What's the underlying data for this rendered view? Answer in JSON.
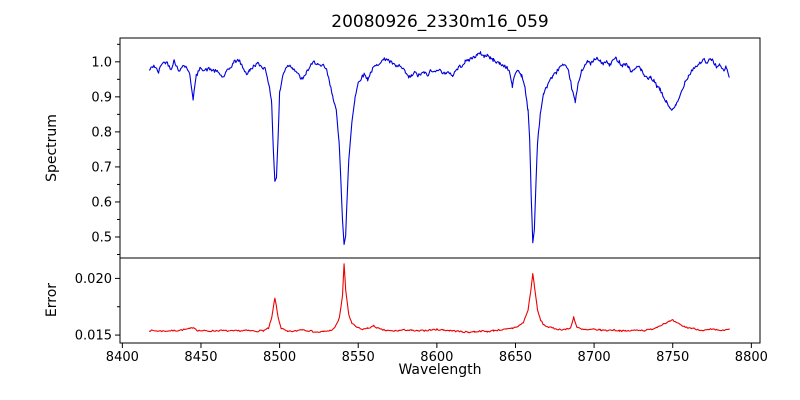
{
  "title": "20080926_2330m16_059",
  "axes": {
    "xlabel": "Wavelength",
    "top_ylabel": "Spectrum",
    "bottom_ylabel": "Error",
    "x_tick_values": [
      8400,
      8450,
      8500,
      8550,
      8600,
      8650,
      8700,
      8750,
      8800
    ],
    "x_tick_labels": [
      "8400",
      "8450",
      "8500",
      "8550",
      "8600",
      "8650",
      "8700",
      "8750",
      "8800"
    ],
    "top_y_tick_values": [
      0.5,
      0.6,
      0.7,
      0.8,
      0.9,
      1.0
    ],
    "top_y_tick_labels": [
      "0.5",
      "0.6",
      "0.7",
      "0.8",
      "0.9",
      "1.0"
    ],
    "top_y_minor_ticks": [
      0.45,
      0.55,
      0.65,
      0.75,
      0.85,
      0.95,
      1.05
    ],
    "bottom_y_tick_values": [
      0.015,
      0.02
    ],
    "bottom_y_tick_labels": [
      "0.015",
      "0.020"
    ],
    "bottom_y_minor_ticks": [
      0.0175
    ]
  },
  "chart_data": [
    {
      "type": "line",
      "name": "spectrum",
      "panel": "top",
      "color": "#0000dd",
      "ylabel": "Spectrum",
      "x_range": [
        8398.5,
        8805.5
      ],
      "y_range": [
        0.44,
        1.068
      ],
      "noise_amplitude": 0.005,
      "step": 0.6,
      "seed": 42,
      "points": [
        [
          8417,
          0.975
        ],
        [
          8420,
          0.99
        ],
        [
          8423,
          0.97
        ],
        [
          8425,
          0.995
        ],
        [
          8428,
          1.0
        ],
        [
          8431,
          0.98
        ],
        [
          8433,
          1.005
        ],
        [
          8436,
          0.97
        ],
        [
          8438,
          0.99
        ],
        [
          8441,
          0.985
        ],
        [
          8443,
          0.96
        ],
        [
          8445,
          0.895
        ],
        [
          8447,
          0.96
        ],
        [
          8450,
          0.985
        ],
        [
          8452,
          0.975
        ],
        [
          8455,
          0.98
        ],
        [
          8458,
          0.975
        ],
        [
          8461,
          0.97
        ],
        [
          8464,
          0.955
        ],
        [
          8466,
          0.97
        ],
        [
          8469,
          0.985
        ],
        [
          8471,
          1.0
        ],
        [
          8474,
          1.005
        ],
        [
          8476,
          0.99
        ],
        [
          8479,
          0.965
        ],
        [
          8481,
          0.975
        ],
        [
          8484,
          0.99
        ],
        [
          8486,
          0.995
        ],
        [
          8489,
          0.985
        ],
        [
          8491,
          0.98
        ],
        [
          8493,
          0.94
        ],
        [
          8495,
          0.88
        ],
        [
          8496,
          0.75
        ],
        [
          8497,
          0.66
        ],
        [
          8498,
          0.67
        ],
        [
          8499,
          0.78
        ],
        [
          8500,
          0.91
        ],
        [
          8502,
          0.96
        ],
        [
          8504,
          0.985
        ],
        [
          8506,
          0.99
        ],
        [
          8508,
          0.985
        ],
        [
          8511,
          0.97
        ],
        [
          8513,
          0.955
        ],
        [
          8515,
          0.95
        ],
        [
          8517,
          0.97
        ],
        [
          8520,
          0.99
        ],
        [
          8522,
          1.0
        ],
        [
          8524,
          0.995
        ],
        [
          8526,
          0.985
        ],
        [
          8528,
          0.99
        ],
        [
          8530,
          0.975
        ],
        [
          8532,
          0.935
        ],
        [
          8534,
          0.9
        ],
        [
          8536,
          0.86
        ],
        [
          8538,
          0.76
        ],
        [
          8539,
          0.66
        ],
        [
          8540,
          0.55
        ],
        [
          8541,
          0.478
        ],
        [
          8542,
          0.5
        ],
        [
          8543,
          0.62
        ],
        [
          8544,
          0.72
        ],
        [
          8546,
          0.83
        ],
        [
          8548,
          0.9
        ],
        [
          8550,
          0.94
        ],
        [
          8552,
          0.955
        ],
        [
          8554,
          0.965
        ],
        [
          8556,
          0.95
        ],
        [
          8558,
          0.97
        ],
        [
          8560,
          0.985
        ],
        [
          8562,
          0.99
        ],
        [
          8564,
          1.0
        ],
        [
          8566,
          1.005
        ],
        [
          8568,
          1.01
        ],
        [
          8570,
          1.0
        ],
        [
          8572,
          0.995
        ],
        [
          8574,
          0.985
        ],
        [
          8576,
          0.99
        ],
        [
          8578,
          0.98
        ],
        [
          8580,
          0.97
        ],
        [
          8582,
          0.955
        ],
        [
          8584,
          0.96
        ],
        [
          8586,
          0.97
        ],
        [
          8588,
          0.96
        ],
        [
          8590,
          0.965
        ],
        [
          8592,
          0.97
        ],
        [
          8594,
          0.96
        ],
        [
          8596,
          0.975
        ],
        [
          8598,
          0.97
        ],
        [
          8600,
          0.98
        ],
        [
          8602,
          0.975
        ],
        [
          8604,
          0.97
        ],
        [
          8606,
          0.965
        ],
        [
          8608,
          0.97
        ],
        [
          8610,
          0.96
        ],
        [
          8612,
          0.975
        ],
        [
          8614,
          0.985
        ],
        [
          8616,
          0.99
        ],
        [
          8618,
          1.0
        ],
        [
          8620,
          1.005
        ],
        [
          8622,
          1.01
        ],
        [
          8624,
          1.015
        ],
        [
          8626,
          1.02
        ],
        [
          8628,
          1.025
        ],
        [
          8630,
          1.015
        ],
        [
          8632,
          1.02
        ],
        [
          8634,
          1.01
        ],
        [
          8636,
          1.005
        ],
        [
          8638,
          1.0
        ],
        [
          8640,
          0.995
        ],
        [
          8642,
          0.99
        ],
        [
          8644,
          0.985
        ],
        [
          8646,
          0.975
        ],
        [
          8648,
          0.93
        ],
        [
          8650,
          0.97
        ],
        [
          8652,
          0.975
        ],
        [
          8654,
          0.96
        ],
        [
          8656,
          0.93
        ],
        [
          8658,
          0.86
        ],
        [
          8659,
          0.78
        ],
        [
          8660,
          0.62
        ],
        [
          8661,
          0.483
        ],
        [
          8662,
          0.52
        ],
        [
          8663,
          0.65
        ],
        [
          8664,
          0.77
        ],
        [
          8666,
          0.86
        ],
        [
          8668,
          0.91
        ],
        [
          8670,
          0.93
        ],
        [
          8672,
          0.95
        ],
        [
          8674,
          0.96
        ],
        [
          8676,
          0.97
        ],
        [
          8678,
          0.985
        ],
        [
          8680,
          0.99
        ],
        [
          8682,
          0.985
        ],
        [
          8684,
          0.97
        ],
        [
          8686,
          0.92
        ],
        [
          8688,
          0.885
        ],
        [
          8690,
          0.94
        ],
        [
          8692,
          0.975
        ],
        [
          8694,
          0.99
        ],
        [
          8696,
          1.0
        ],
        [
          8698,
          0.995
        ],
        [
          8700,
          1.005
        ],
        [
          8702,
          1.01
        ],
        [
          8704,
          1.0
        ],
        [
          8706,
          0.995
        ],
        [
          8708,
          1.0
        ],
        [
          8710,
          0.99
        ],
        [
          8712,
          1.005
        ],
        [
          8714,
          1.01
        ],
        [
          8716,
          1.0
        ],
        [
          8718,
          0.99
        ],
        [
          8720,
          0.995
        ],
        [
          8722,
          0.985
        ],
        [
          8724,
          0.97
        ],
        [
          8726,
          0.98
        ],
        [
          8728,
          0.99
        ],
        [
          8730,
          0.975
        ],
        [
          8732,
          0.96
        ],
        [
          8734,
          0.95
        ],
        [
          8736,
          0.955
        ],
        [
          8738,
          0.945
        ],
        [
          8740,
          0.93
        ],
        [
          8742,
          0.92
        ],
        [
          8744,
          0.9
        ],
        [
          8746,
          0.885
        ],
        [
          8748,
          0.87
        ],
        [
          8750,
          0.862
        ],
        [
          8752,
          0.875
        ],
        [
          8754,
          0.895
        ],
        [
          8756,
          0.92
        ],
        [
          8758,
          0.945
        ],
        [
          8760,
          0.96
        ],
        [
          8762,
          0.975
        ],
        [
          8764,
          0.985
        ],
        [
          8766,
          0.99
        ],
        [
          8768,
          1.0
        ],
        [
          8770,
          1.005
        ],
        [
          8772,
          0.995
        ],
        [
          8774,
          1.01
        ],
        [
          8776,
          1.0
        ],
        [
          8778,
          0.985
        ],
        [
          8780,
          0.99
        ],
        [
          8782,
          0.975
        ],
        [
          8784,
          0.985
        ],
        [
          8786,
          0.955
        ]
      ]
    },
    {
      "type": "line",
      "name": "error",
      "panel": "bottom",
      "color": "#ee0000",
      "ylabel": "Error",
      "x_range": [
        8398.5,
        8805.5
      ],
      "y_range": [
        0.0143,
        0.0218
      ],
      "noise_amplitude": 7e-05,
      "step": 0.8,
      "seed": 7,
      "points": [
        [
          8417,
          0.0154
        ],
        [
          8425,
          0.01535
        ],
        [
          8435,
          0.0154
        ],
        [
          8443,
          0.01555
        ],
        [
          8445,
          0.0157
        ],
        [
          8448,
          0.0154
        ],
        [
          8455,
          0.01535
        ],
        [
          8462,
          0.0154
        ],
        [
          8470,
          0.01535
        ],
        [
          8478,
          0.0154
        ],
        [
          8485,
          0.01535
        ],
        [
          8490,
          0.0154
        ],
        [
          8493,
          0.0156
        ],
        [
          8495,
          0.0165
        ],
        [
          8497,
          0.0183
        ],
        [
          8499,
          0.0166
        ],
        [
          8501,
          0.0156
        ],
        [
          8505,
          0.0153
        ],
        [
          8510,
          0.01535
        ],
        [
          8514,
          0.0155
        ],
        [
          8518,
          0.0154
        ],
        [
          8524,
          0.01525
        ],
        [
          8528,
          0.0153
        ],
        [
          8532,
          0.0154
        ],
        [
          8535,
          0.0156
        ],
        [
          8538,
          0.0165
        ],
        [
          8540,
          0.0185
        ],
        [
          8541,
          0.0213
        ],
        [
          8542,
          0.019
        ],
        [
          8544,
          0.0168
        ],
        [
          8546,
          0.016
        ],
        [
          8549,
          0.0157
        ],
        [
          8552,
          0.0155
        ],
        [
          8556,
          0.0156
        ],
        [
          8560,
          0.0158
        ],
        [
          8564,
          0.0155
        ],
        [
          8568,
          0.0154
        ],
        [
          8572,
          0.01535
        ],
        [
          8576,
          0.0154
        ],
        [
          8580,
          0.01545
        ],
        [
          8584,
          0.0154
        ],
        [
          8588,
          0.01535
        ],
        [
          8592,
          0.0154
        ],
        [
          8596,
          0.01545
        ],
        [
          8600,
          0.0155
        ],
        [
          8604,
          0.01545
        ],
        [
          8608,
          0.0154
        ],
        [
          8612,
          0.01535
        ],
        [
          8616,
          0.0153
        ],
        [
          8620,
          0.01525
        ],
        [
          8624,
          0.0153
        ],
        [
          8628,
          0.01535
        ],
        [
          8632,
          0.0153
        ],
        [
          8636,
          0.0154
        ],
        [
          8640,
          0.01545
        ],
        [
          8644,
          0.0155
        ],
        [
          8648,
          0.0156
        ],
        [
          8652,
          0.0158
        ],
        [
          8655,
          0.0161
        ],
        [
          8658,
          0.0172
        ],
        [
          8660,
          0.0192
        ],
        [
          8661,
          0.0204
        ],
        [
          8662,
          0.0194
        ],
        [
          8664,
          0.0172
        ],
        [
          8666,
          0.0163
        ],
        [
          8668,
          0.0159
        ],
        [
          8671,
          0.0157
        ],
        [
          8674,
          0.0156
        ],
        [
          8678,
          0.0155
        ],
        [
          8682,
          0.0155
        ],
        [
          8685,
          0.0156
        ],
        [
          8687,
          0.0166
        ],
        [
          8689,
          0.0157
        ],
        [
          8692,
          0.0155
        ],
        [
          8696,
          0.01545
        ],
        [
          8700,
          0.0155
        ],
        [
          8704,
          0.01545
        ],
        [
          8708,
          0.0154
        ],
        [
          8712,
          0.01545
        ],
        [
          8716,
          0.0154
        ],
        [
          8720,
          0.01535
        ],
        [
          8724,
          0.0154
        ],
        [
          8728,
          0.01545
        ],
        [
          8732,
          0.0154
        ],
        [
          8736,
          0.0155
        ],
        [
          8740,
          0.0157
        ],
        [
          8744,
          0.016
        ],
        [
          8748,
          0.0162
        ],
        [
          8750,
          0.0163
        ],
        [
          8752,
          0.0161
        ],
        [
          8755,
          0.0159
        ],
        [
          8758,
          0.0157
        ],
        [
          8762,
          0.0156
        ],
        [
          8766,
          0.0155
        ],
        [
          8770,
          0.0154
        ],
        [
          8774,
          0.0155
        ],
        [
          8778,
          0.01545
        ],
        [
          8782,
          0.0154
        ],
        [
          8786,
          0.0155
        ]
      ]
    }
  ]
}
